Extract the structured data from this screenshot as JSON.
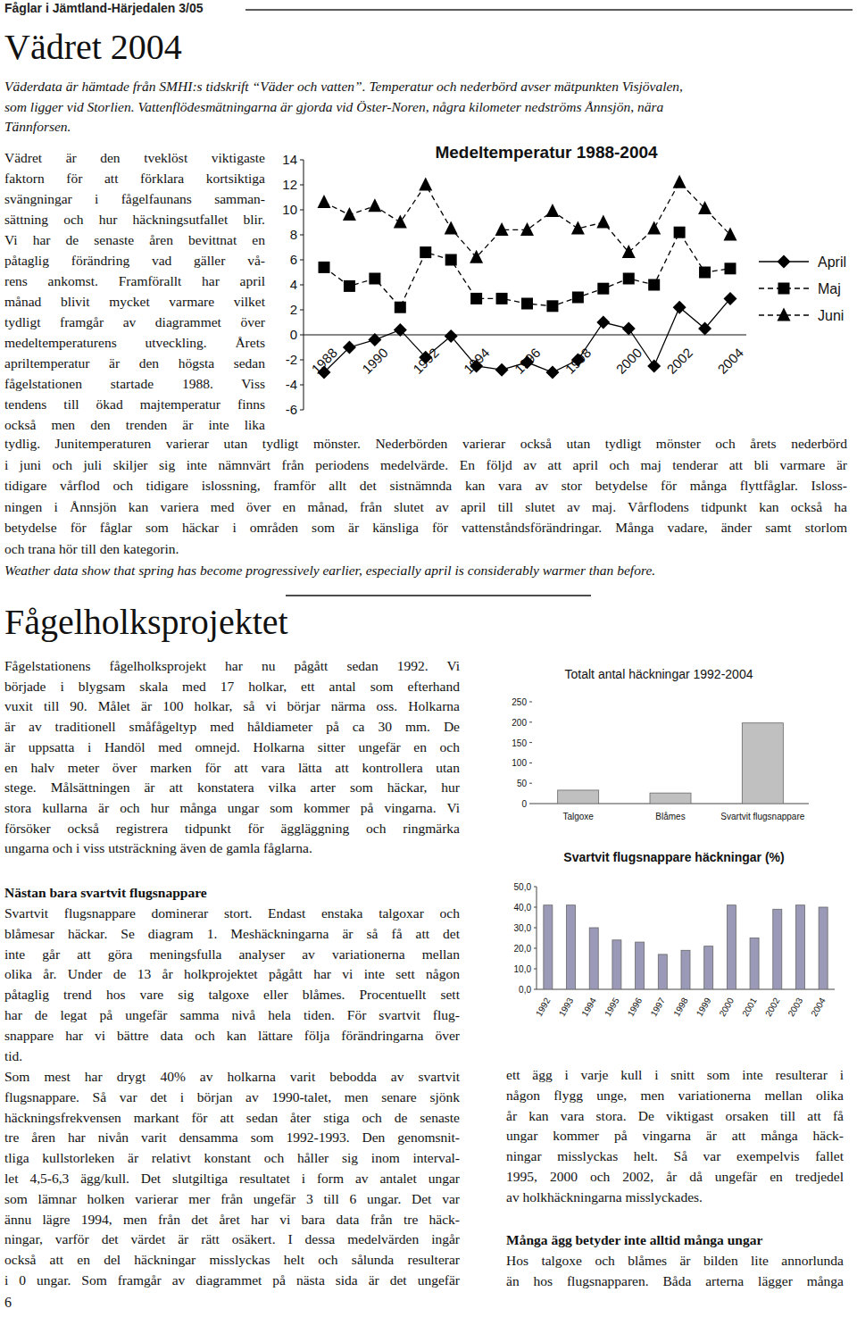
{
  "header": {
    "running_title": "Fåglar i Jämtland-Härjedalen 3/05",
    "page_number": "6"
  },
  "weather": {
    "title": "Vädret 2004",
    "intro_lines": [
      "Väderdata är hämtade från SMHI:s tidskrift “Väder och vatten”. Temperatur och nederbörd avser mätpunkten Visjövalen,",
      "som ligger vid Storlien. Vattenflödesmätningarna är gjorda vid Öster-Noren, några kilometer nedströms Ånnsjön, nära",
      "Tännforsen."
    ],
    "column_lines": [
      "Vädret är den tveklöst viktigaste",
      "faktorn för att förklara kortsiktiga",
      "svängningar i fågelfaunans samman-",
      "sättning och hur häckningsutfallet blir.",
      "Vi har de senaste åren bevittnat en",
      "påtaglig förändring vad gäller vå-",
      "rens ankomst. Framförallt har april",
      "månad blivit mycket varmare vilket",
      "tydligt framgår av diagrammet över",
      "medeltemperaturens utveckling. Årets",
      "apriltemperatur är den högsta sedan",
      "fågelstationen startade 1988. Viss",
      "tendens till ökad majtemperatur finns",
      "också men den trenden är inte lika"
    ],
    "body_lines": [
      "tydlig. Junitemperaturen varierar utan tydligt mönster. Nederbörden varierar också utan tydligt mönster och årets nederbörd",
      "i juni och juli skiljer sig inte nämnvärt från periodens medelvärde. En följd av att april och maj tenderar att bli varmare är",
      "tidigare vårflod och tidigare islossning, framför allt det sistnämnda kan vara av stor betydelse för många flyttfåglar. Isloss-",
      "ningen i Ånnsjön kan variera med över en månad, från slutet av april till slutet av maj. Vårflodens tidpunkt kan också ha",
      "betydelse för fåglar som häckar i områden som är känsliga för vattenståndsförändringar. Många vadare, änder samt storlom",
      "och trana hör till den kategorin."
    ],
    "english": "Weather data show that spring has become progressively earlier, especially april is considerably warmer than before."
  },
  "birdbox": {
    "title": "Fågelholksprojektet",
    "intro_lines": [
      "Fågelstationens fågelholksprojekt har nu pågått sedan 1992. Vi",
      "började i blygsam skala med 17 holkar, ett antal som efterhand",
      "vuxit till 90. Målet är 100 holkar, så vi börjar närma oss. Holkarna",
      "är av traditionell småfågeltyp med håldiameter på ca 30 mm. De",
      "är uppsatta i Handöl med omnejd. Holkarna sitter ungefär en och",
      "en halv meter över marken för att vara lätta att kontrollera utan",
      "stege. Målsättningen är att konstatera vilka arter som häckar, hur",
      "stora kullarna är och hur många ungar som kommer på vingarna. Vi",
      "försöker också registrera tidpunkt för äggläggning och ringmärka",
      "ungarna och i viss utsträckning även de gamla fåglarna."
    ],
    "subheading": "Nästan bara svartvit flugsnappare",
    "paragraph1_lines": [
      "Svartvit flugsnappare dominerar stort. Endast enstaka talgoxar och",
      "blåmesar häckar. Se diagram 1. Meshäckningarna är så få att det",
      "inte går att göra meningsfulla analyser av variationerna mellan",
      "olika år. Under de 13 år holkprojektet pågått har vi inte sett någon",
      "påtaglig trend hos vare sig talgoxe eller blåmes. Procentuellt sett",
      "har de legat på ungefär samma nivå hela tiden. För  svartvit flug-",
      "snappare har vi bättre data och kan lättare följa förändringarna över",
      "tid."
    ],
    "paragraph2_lines": [
      "Som mest har drygt 40% av holkarna varit bebodda av svartvit",
      "flugsnappare. Så var det i början av 1990-talet, men senare sjönk",
      "häckningsfrekvensen markant för att sedan åter stiga och de senaste",
      "tre åren har nivån varit densamma som 1992-1993. Den genomsnit-",
      "tliga kullstorleken är relativt konstant och håller sig inom interval-",
      "let 4,5-6,3 ägg/kull. Det slutgiltiga resultatet i form av antalet ungar",
      "som lämnar holken varierar mer från ungefär 3 till 6 ungar. Det var",
      "ännu lägre 1994, men från det året har vi bara data från tre häck-",
      "ningar, varför det värdet är rätt osäkert. I dessa medelvärden ingår",
      "också att en del häckningar misslyckas helt och sålunda resulterar",
      "i 0 ungar. Som framgår av diagrammet på nästa sida är det ungefär"
    ],
    "right_lines": [
      "ett ägg i varje kull i snitt som inte resulterar i",
      "någon flygg unge, men variationerna mellan olika",
      "år kan vara stora. De viktigast orsaken till att få",
      "ungar kommer på vingarna är att många häck-",
      "ningar misslyckas helt. Så var exempelvis fallet",
      "1995, 2000 och 2002, år då ungefär en tredjedel",
      "av holkhäckningarna misslyckades."
    ],
    "right_heading": "Många ägg betyder inte alltid många ungar",
    "right_tail_lines": [
      "Hos talgoxe och blåmes är bilden lite annorlunda",
      "än hos flugsnapparen. Båda arterna lägger många"
    ]
  },
  "chart_data": [
    {
      "type": "line",
      "title": "Medeltemperatur 1988-2004",
      "categories": [
        "1988",
        null,
        "1990",
        null,
        "1992",
        null,
        "1994",
        null,
        "1996",
        null,
        "1998",
        null,
        "2000",
        null,
        "2002",
        null,
        "2004"
      ],
      "series": [
        {
          "name": "April",
          "color": "#000000",
          "marker": "diamond",
          "line_style": "solid",
          "values": [
            -3.0,
            -1.0,
            -0.4,
            0.4,
            -1.8,
            -0.1,
            -2.5,
            -2.8,
            -2.2,
            -3.0,
            -2.0,
            1.0,
            0.5,
            -2.5,
            2.2,
            0.5,
            2.9
          ]
        },
        {
          "name": "Maj",
          "color": "#000000",
          "marker": "square",
          "line_style": "dashed",
          "values": [
            5.4,
            3.9,
            4.5,
            2.2,
            6.6,
            6.0,
            2.9,
            2.9,
            2.5,
            2.3,
            3.0,
            3.7,
            4.5,
            4.0,
            8.2,
            5.0,
            5.3
          ]
        },
        {
          "name": "Juni",
          "color": "#000000",
          "marker": "triangle",
          "line_style": "dashed",
          "values": [
            10.6,
            9.6,
            10.3,
            9.0,
            12.0,
            8.5,
            6.2,
            8.4,
            8.4,
            9.9,
            8.5,
            9.0,
            6.6,
            8.5,
            12.2,
            10.1,
            8.0
          ]
        }
      ],
      "ylim": [
        -6,
        14
      ],
      "yticks": [
        -6,
        -4,
        -2,
        0,
        2,
        4,
        6,
        8,
        10,
        12,
        14
      ],
      "grid": false,
      "legend": "right"
    },
    {
      "type": "bar",
      "title": "Totalt antal häckningar 1992-2004",
      "categories": [
        "Talgoxe",
        "Blåmes",
        "Svartvit flugsnappare"
      ],
      "values": [
        33,
        26,
        198
      ],
      "color": "#c0c0c0",
      "ylim": [
        0,
        250
      ],
      "yticks": [
        0,
        50,
        100,
        150,
        200,
        250
      ],
      "grid": false
    },
    {
      "type": "bar",
      "title": "Svartvit flugsnappare häckningar (%)",
      "categories": [
        "1992",
        "1993",
        "1994",
        "1995",
        "1996",
        "1997",
        "1998",
        "1999",
        "2000",
        "2001",
        "2002",
        "2003",
        "2004"
      ],
      "values": [
        41,
        41,
        30,
        24,
        23,
        17,
        19,
        21,
        41,
        25,
        39,
        41,
        40
      ],
      "color": "#9a9ab8",
      "ylim": [
        0,
        50
      ],
      "yticks": [
        {
          "value": 0,
          "label": "0,0"
        },
        {
          "value": 10,
          "label": "10,0"
        },
        {
          "value": 20,
          "label": "20,0"
        },
        {
          "value": 30,
          "label": "30,0"
        },
        {
          "value": 40,
          "label": "40,0"
        },
        {
          "value": 50,
          "label": "50,0"
        }
      ],
      "grid": false
    }
  ]
}
